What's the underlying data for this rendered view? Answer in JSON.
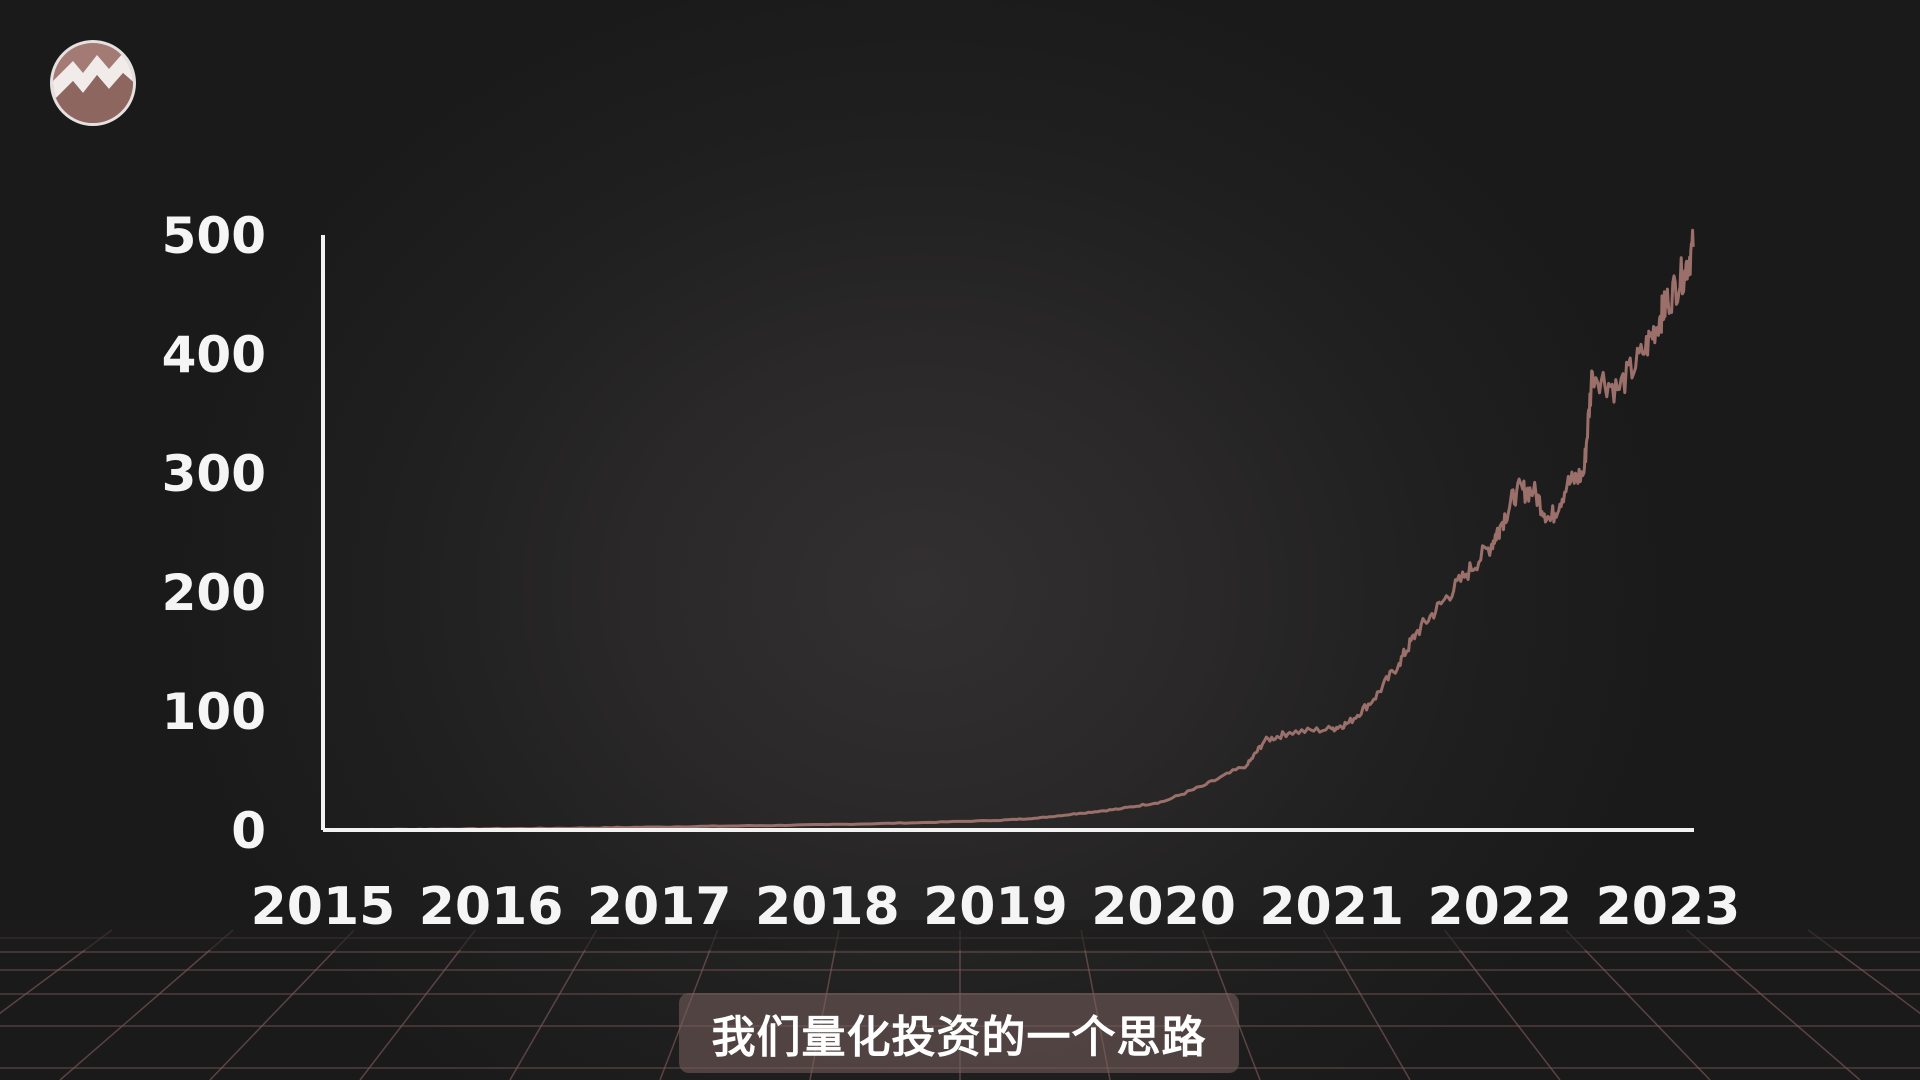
{
  "logo": {
    "icon": "rising-chart-logo-icon"
  },
  "subtitle": "我们量化投资的一个思路",
  "colors": {
    "background": "#1c1c1c",
    "line": "#9b706a",
    "axis": "#f2f2f2",
    "grid": "#7d5a58",
    "subtitle_bg": "#78605c"
  },
  "chart_data": {
    "type": "line",
    "title": "",
    "xlabel": "",
    "ylabel": "",
    "x_ticks": [
      "2015",
      "2016",
      "2017",
      "2018",
      "2019",
      "2020",
      "2021",
      "2022",
      "2023"
    ],
    "y_ticks": [
      "0",
      "100",
      "200",
      "300",
      "400",
      "500"
    ],
    "xlim": [
      2015,
      2023
    ],
    "ylim": [
      0,
      500
    ],
    "grid": false,
    "series": [
      {
        "x": [
          2015.0,
          2015.5,
          2016.0,
          2016.5,
          2017.0,
          2017.5,
          2018.0,
          2018.5,
          2019.0,
          2019.25,
          2019.5,
          2019.75,
          2020.0,
          2020.25,
          2020.5,
          2020.6,
          2020.75,
          2021.0,
          2021.1,
          2021.25,
          2021.4,
          2021.5,
          2021.65,
          2021.8,
          2021.95,
          2022.0,
          2022.1,
          2022.2,
          2022.3,
          2022.4,
          2022.5,
          2022.55,
          2022.7,
          2022.85,
          2022.95,
          2023.0,
          2023.1,
          2023.15
        ],
        "y": [
          0,
          0.5,
          1,
          1.5,
          2.5,
          3.5,
          4.5,
          6,
          8,
          10,
          14,
          18,
          24,
          38,
          55,
          75,
          82,
          85,
          90,
          110,
          140,
          165,
          190,
          215,
          240,
          255,
          285,
          285,
          260,
          290,
          300,
          385,
          370,
          400,
          430,
          445,
          470,
          490
        ]
      }
    ]
  }
}
